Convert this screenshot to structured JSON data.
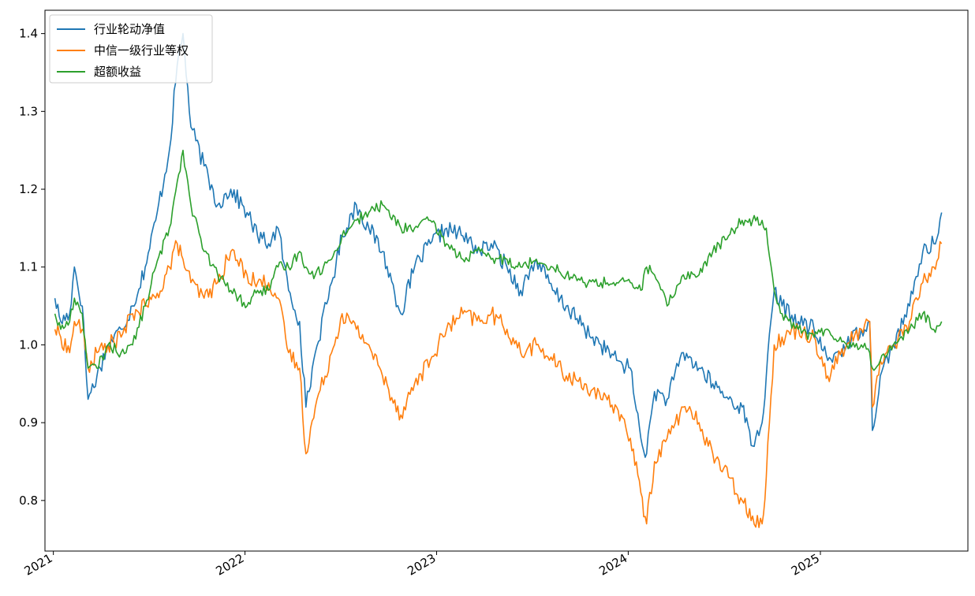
{
  "chart_data": {
    "type": "line",
    "title": "",
    "xlabel": "",
    "ylabel": "",
    "x_range": [
      "2021-01-01",
      "2025-08-31"
    ],
    "ylim": [
      0.735,
      1.43
    ],
    "x_ticks": [
      "2021",
      "2022",
      "2023",
      "2024",
      "2025"
    ],
    "y_ticks": [
      "0.8",
      "0.9",
      "1.0",
      "1.1",
      "1.2",
      "1.3",
      "1.4"
    ],
    "grid": false,
    "legend_position": "top-left",
    "series": [
      {
        "name": "行业轮动净值",
        "color": "#1f77b4",
        "points": [
          [
            "2021-01-04",
            1.06
          ],
          [
            "2021-01-15",
            1.03
          ],
          [
            "2021-02-01",
            1.04
          ],
          [
            "2021-02-10",
            1.1
          ],
          [
            "2021-02-25",
            1.05
          ],
          [
            "2021-03-08",
            0.93
          ],
          [
            "2021-03-25",
            0.96
          ],
          [
            "2021-04-15",
            1.0
          ],
          [
            "2021-05-10",
            1.02
          ],
          [
            "2021-06-01",
            1.05
          ],
          [
            "2021-06-25",
            1.1
          ],
          [
            "2021-07-15",
            1.16
          ],
          [
            "2021-08-10",
            1.25
          ],
          [
            "2021-08-25",
            1.36
          ],
          [
            "2021-09-05",
            1.4
          ],
          [
            "2021-09-20",
            1.28
          ],
          [
            "2021-10-15",
            1.23
          ],
          [
            "2021-11-10",
            1.18
          ],
          [
            "2021-12-05",
            1.2
          ],
          [
            "2022-01-05",
            1.17
          ],
          [
            "2022-01-25",
            1.14
          ],
          [
            "2022-02-15",
            1.13
          ],
          [
            "2022-03-05",
            1.15
          ],
          [
            "2022-03-25",
            1.07
          ],
          [
            "2022-04-15",
            1.03
          ],
          [
            "2022-04-27",
            0.92
          ],
          [
            "2022-05-15",
            0.99
          ],
          [
            "2022-06-15",
            1.08
          ],
          [
            "2022-07-05",
            1.14
          ],
          [
            "2022-08-01",
            1.18
          ],
          [
            "2022-08-25",
            1.15
          ],
          [
            "2022-09-20",
            1.12
          ],
          [
            "2022-10-25",
            1.04
          ],
          [
            "2022-11-20",
            1.1
          ],
          [
            "2022-12-20",
            1.13
          ],
          [
            "2023-01-20",
            1.15
          ],
          [
            "2023-02-20",
            1.14
          ],
          [
            "2023-03-25",
            1.12
          ],
          [
            "2023-04-15",
            1.13
          ],
          [
            "2023-05-15",
            1.1
          ],
          [
            "2023-06-10",
            1.07
          ],
          [
            "2023-07-10",
            1.11
          ],
          [
            "2023-08-10",
            1.07
          ],
          [
            "2023-09-05",
            1.05
          ],
          [
            "2023-10-10",
            1.02
          ],
          [
            "2023-11-10",
            1.0
          ],
          [
            "2023-12-10",
            0.98
          ],
          [
            "2024-01-05",
            0.97
          ],
          [
            "2024-01-25",
            0.88
          ],
          [
            "2024-02-05",
            0.86
          ],
          [
            "2024-02-20",
            0.94
          ],
          [
            "2024-03-15",
            0.93
          ],
          [
            "2024-04-15",
            0.99
          ],
          [
            "2024-05-15",
            0.97
          ],
          [
            "2024-06-10",
            0.95
          ],
          [
            "2024-07-10",
            0.93
          ],
          [
            "2024-08-05",
            0.92
          ],
          [
            "2024-08-25",
            0.87
          ],
          [
            "2024-09-12",
            0.9
          ],
          [
            "2024-09-20",
            0.96
          ],
          [
            "2024-10-05",
            1.07
          ],
          [
            "2024-10-20",
            1.05
          ],
          [
            "2024-11-20",
            1.03
          ],
          [
            "2024-12-20",
            1.02
          ],
          [
            "2025-01-15",
            0.98
          ],
          [
            "2025-02-20",
            1.0
          ],
          [
            "2025-03-20",
            1.02
          ],
          [
            "2025-04-05",
            1.03
          ],
          [
            "2025-04-10",
            0.89
          ],
          [
            "2025-04-25",
            0.96
          ],
          [
            "2025-05-20",
            1.0
          ],
          [
            "2025-06-20",
            1.05
          ],
          [
            "2025-07-15",
            1.12
          ],
          [
            "2025-08-05",
            1.13
          ],
          [
            "2025-08-20",
            1.17
          ]
        ]
      },
      {
        "name": "中信一级行业等权",
        "color": "#ff7f0e",
        "points": [
          [
            "2021-01-04",
            1.02
          ],
          [
            "2021-01-15",
            1.01
          ],
          [
            "2021-02-01",
            0.99
          ],
          [
            "2021-02-10",
            1.03
          ],
          [
            "2021-02-25",
            1.02
          ],
          [
            "2021-03-08",
            0.97
          ],
          [
            "2021-03-25",
            0.99
          ],
          [
            "2021-04-15",
            1.0
          ],
          [
            "2021-05-10",
            1.01
          ],
          [
            "2021-06-01",
            1.04
          ],
          [
            "2021-06-25",
            1.05
          ],
          [
            "2021-07-15",
            1.06
          ],
          [
            "2021-08-10",
            1.1
          ],
          [
            "2021-08-25",
            1.13
          ],
          [
            "2021-09-05",
            1.11
          ],
          [
            "2021-09-20",
            1.08
          ],
          [
            "2021-10-15",
            1.06
          ],
          [
            "2021-11-10",
            1.08
          ],
          [
            "2021-12-05",
            1.12
          ],
          [
            "2022-01-05",
            1.09
          ],
          [
            "2022-01-25",
            1.08
          ],
          [
            "2022-02-15",
            1.08
          ],
          [
            "2022-03-05",
            1.06
          ],
          [
            "2022-03-25",
            0.99
          ],
          [
            "2022-04-15",
            0.97
          ],
          [
            "2022-04-27",
            0.86
          ],
          [
            "2022-05-15",
            0.92
          ],
          [
            "2022-06-15",
            0.99
          ],
          [
            "2022-07-05",
            1.04
          ],
          [
            "2022-08-01",
            1.02
          ],
          [
            "2022-08-25",
            1.0
          ],
          [
            "2022-09-20",
            0.96
          ],
          [
            "2022-10-25",
            0.91
          ],
          [
            "2022-11-20",
            0.95
          ],
          [
            "2022-12-20",
            0.98
          ],
          [
            "2023-01-20",
            1.02
          ],
          [
            "2023-02-20",
            1.04
          ],
          [
            "2023-03-25",
            1.03
          ],
          [
            "2023-04-15",
            1.04
          ],
          [
            "2023-05-15",
            1.02
          ],
          [
            "2023-06-10",
            0.99
          ],
          [
            "2023-07-10",
            1.0
          ],
          [
            "2023-08-10",
            0.98
          ],
          [
            "2023-09-05",
            0.96
          ],
          [
            "2023-10-10",
            0.95
          ],
          [
            "2023-11-10",
            0.93
          ],
          [
            "2023-12-10",
            0.92
          ],
          [
            "2024-01-05",
            0.88
          ],
          [
            "2024-01-25",
            0.81
          ],
          [
            "2024-02-05",
            0.77
          ],
          [
            "2024-02-20",
            0.85
          ],
          [
            "2024-03-15",
            0.88
          ],
          [
            "2024-04-15",
            0.92
          ],
          [
            "2024-05-15",
            0.9
          ],
          [
            "2024-06-10",
            0.86
          ],
          [
            "2024-07-10",
            0.83
          ],
          [
            "2024-08-05",
            0.8
          ],
          [
            "2024-08-25",
            0.78
          ],
          [
            "2024-09-12",
            0.77
          ],
          [
            "2024-09-20",
            0.83
          ],
          [
            "2024-10-05",
            1.0
          ],
          [
            "2024-10-20",
            1.01
          ],
          [
            "2024-11-20",
            1.02
          ],
          [
            "2024-12-20",
            1.01
          ],
          [
            "2025-01-15",
            0.96
          ],
          [
            "2025-02-20",
            1.0
          ],
          [
            "2025-03-20",
            1.02
          ],
          [
            "2025-04-05",
            1.03
          ],
          [
            "2025-04-10",
            0.92
          ],
          [
            "2025-04-25",
            0.98
          ],
          [
            "2025-05-20",
            1.0
          ],
          [
            "2025-06-20",
            1.03
          ],
          [
            "2025-07-15",
            1.08
          ],
          [
            "2025-08-05",
            1.1
          ],
          [
            "2025-08-20",
            1.13
          ]
        ]
      },
      {
        "name": "超额收益",
        "color": "#2ca02c",
        "points": [
          [
            "2021-01-04",
            1.04
          ],
          [
            "2021-01-15",
            1.02
          ],
          [
            "2021-02-01",
            1.03
          ],
          [
            "2021-02-10",
            1.06
          ],
          [
            "2021-02-25",
            1.04
          ],
          [
            "2021-03-08",
            0.97
          ],
          [
            "2021-03-25",
            0.97
          ],
          [
            "2021-04-15",
            1.0
          ],
          [
            "2021-05-10",
            0.99
          ],
          [
            "2021-06-01",
            1.0
          ],
          [
            "2021-06-25",
            1.05
          ],
          [
            "2021-07-15",
            1.1
          ],
          [
            "2021-08-10",
            1.15
          ],
          [
            "2021-08-25",
            1.21
          ],
          [
            "2021-09-05",
            1.25
          ],
          [
            "2021-09-20",
            1.18
          ],
          [
            "2021-10-15",
            1.12
          ],
          [
            "2021-11-10",
            1.09
          ],
          [
            "2021-12-05",
            1.07
          ],
          [
            "2022-01-05",
            1.05
          ],
          [
            "2022-01-25",
            1.07
          ],
          [
            "2022-02-15",
            1.07
          ],
          [
            "2022-03-05",
            1.1
          ],
          [
            "2022-03-25",
            1.1
          ],
          [
            "2022-04-15",
            1.12
          ],
          [
            "2022-04-27",
            1.1
          ],
          [
            "2022-05-15",
            1.09
          ],
          [
            "2022-06-15",
            1.11
          ],
          [
            "2022-07-05",
            1.14
          ],
          [
            "2022-08-01",
            1.16
          ],
          [
            "2022-08-25",
            1.17
          ],
          [
            "2022-09-20",
            1.18
          ],
          [
            "2022-10-25",
            1.15
          ],
          [
            "2022-11-20",
            1.15
          ],
          [
            "2022-12-20",
            1.16
          ],
          [
            "2023-01-20",
            1.13
          ],
          [
            "2023-02-20",
            1.11
          ],
          [
            "2023-03-25",
            1.12
          ],
          [
            "2023-04-15",
            1.11
          ],
          [
            "2023-05-15",
            1.11
          ],
          [
            "2023-06-10",
            1.1
          ],
          [
            "2023-07-10",
            1.11
          ],
          [
            "2023-08-10",
            1.1
          ],
          [
            "2023-09-05",
            1.09
          ],
          [
            "2023-10-10",
            1.08
          ],
          [
            "2023-11-10",
            1.08
          ],
          [
            "2023-12-10",
            1.08
          ],
          [
            "2024-01-05",
            1.08
          ],
          [
            "2024-01-25",
            1.07
          ],
          [
            "2024-02-05",
            1.1
          ],
          [
            "2024-02-20",
            1.09
          ],
          [
            "2024-03-15",
            1.05
          ],
          [
            "2024-04-15",
            1.09
          ],
          [
            "2024-05-15",
            1.09
          ],
          [
            "2024-06-10",
            1.12
          ],
          [
            "2024-07-10",
            1.14
          ],
          [
            "2024-08-05",
            1.16
          ],
          [
            "2024-08-25",
            1.16
          ],
          [
            "2024-09-12",
            1.16
          ],
          [
            "2024-09-20",
            1.15
          ],
          [
            "2024-10-05",
            1.07
          ],
          [
            "2024-10-20",
            1.04
          ],
          [
            "2024-11-20",
            1.02
          ],
          [
            "2024-12-20",
            1.01
          ],
          [
            "2025-01-15",
            1.02
          ],
          [
            "2025-02-20",
            1.0
          ],
          [
            "2025-03-20",
            1.0
          ],
          [
            "2025-04-05",
            0.99
          ],
          [
            "2025-04-10",
            0.97
          ],
          [
            "2025-04-25",
            0.98
          ],
          [
            "2025-05-20",
            1.0
          ],
          [
            "2025-06-20",
            1.02
          ],
          [
            "2025-07-15",
            1.04
          ],
          [
            "2025-08-05",
            1.02
          ],
          [
            "2025-08-20",
            1.03
          ]
        ]
      }
    ]
  }
}
